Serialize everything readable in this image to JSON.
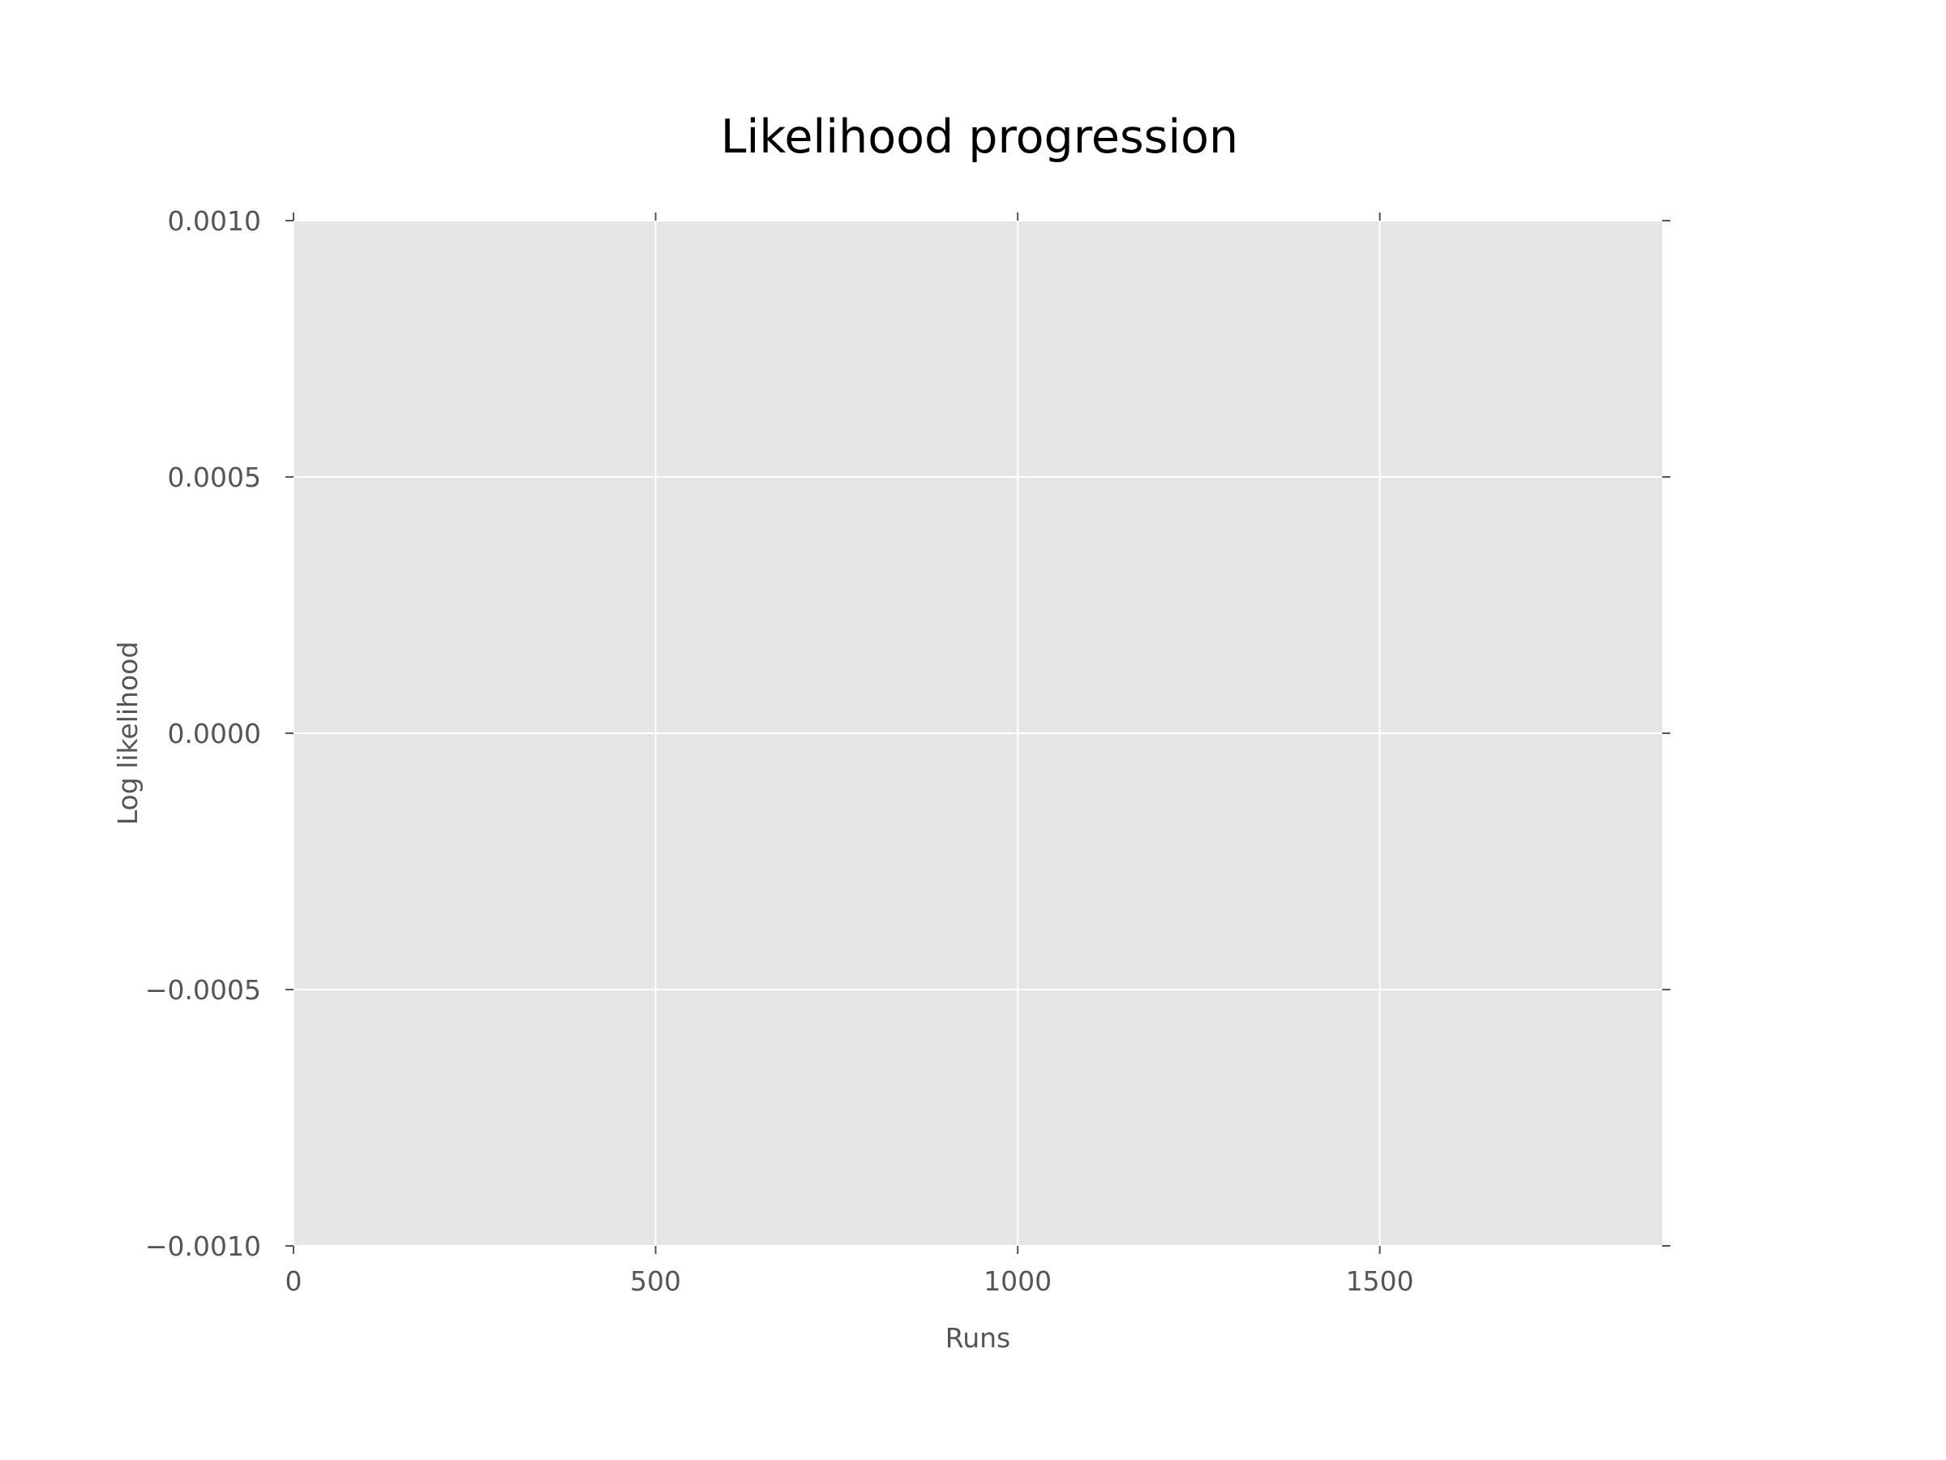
{
  "chart_data": {
    "type": "line",
    "title": "Likelihood progression",
    "xlabel": "Runs",
    "ylabel": "Log likelihood",
    "xlim": [
      0,
      1890
    ],
    "ylim": [
      -0.001,
      0.001
    ],
    "xticks": [
      0,
      500,
      1000,
      1500
    ],
    "xtick_labels": [
      "0",
      "500",
      "1000",
      "1500"
    ],
    "yticks": [
      0.001,
      0.0005,
      0.0,
      -0.0005,
      -0.001
    ],
    "ytick_labels": [
      "0.0010",
      "0.0005",
      "0.0000",
      "−0.0005",
      "−0.0010"
    ],
    "series": [],
    "grid": true,
    "style": "ggplot",
    "colors": {
      "plot_background": "#e5e5e5",
      "grid": "#ffffff",
      "tick_text": "#555555",
      "title_text": "#000000"
    }
  }
}
